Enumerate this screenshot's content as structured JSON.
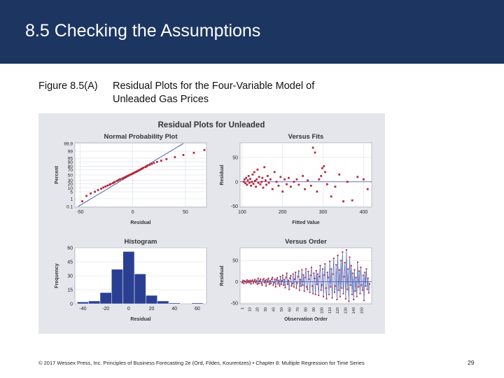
{
  "slide": {
    "title": "8.5 Checking the Assumptions",
    "figure_number": "Figure 8.5(A)",
    "caption_line1": "Residual Plots for the Four-Variable Model of",
    "caption_line2": "Unleaded Gas Prices",
    "footer": "© 2017 Wessex Press, Inc. Principles of Business Forecasting 2e (Ord, Fildes, Kourentzes) • Chapter 8: Multiple Regression for Time Series",
    "page_number": "29"
  },
  "colors": {
    "header": "#1c3561",
    "panel": "#e4e6ec",
    "points": "#b8283a",
    "bars": "#2b3f92",
    "line": "#4d5fb0"
  },
  "figure_title": "Residual Plots for Unleaded",
  "chart_data": [
    {
      "type": "scatter",
      "title": "Normal Probability Plot",
      "xlabel": "Residual",
      "ylabel": "Percent",
      "xlim": [
        -55,
        70
      ],
      "x_ticks": [
        -50,
        0,
        50
      ],
      "y_ticks": [
        0.1,
        1,
        5,
        10,
        20,
        30,
        50,
        70,
        80,
        90,
        95,
        99,
        99.9
      ],
      "y_scale": "normal-probability",
      "reference_line": true,
      "points": [
        [
          -48,
          0.5
        ],
        [
          -44,
          2
        ],
        [
          -40,
          3.5
        ],
        [
          -36,
          5
        ],
        [
          -33,
          7
        ],
        [
          -30,
          9
        ],
        [
          -28,
          11
        ],
        [
          -26,
          13
        ],
        [
          -24,
          15
        ],
        [
          -22,
          17
        ],
        [
          -21,
          19
        ],
        [
          -19,
          21
        ],
        [
          -18,
          23
        ],
        [
          -17,
          25
        ],
        [
          -15,
          28
        ],
        [
          -14,
          30
        ],
        [
          -13,
          32
        ],
        [
          -12,
          34
        ],
        [
          -10,
          36
        ],
        [
          -9,
          38
        ],
        [
          -8,
          40
        ],
        [
          -7,
          42
        ],
        [
          -6,
          44
        ],
        [
          -5,
          46
        ],
        [
          -4,
          48
        ],
        [
          -3,
          50
        ],
        [
          -2,
          52
        ],
        [
          -1,
          54
        ],
        [
          0,
          56
        ],
        [
          1,
          58
        ],
        [
          2,
          60
        ],
        [
          3,
          62
        ],
        [
          4,
          64
        ],
        [
          5,
          66
        ],
        [
          6,
          68
        ],
        [
          7,
          70
        ],
        [
          8,
          72
        ],
        [
          9,
          74
        ],
        [
          10,
          76
        ],
        [
          12,
          78
        ],
        [
          13,
          80
        ],
        [
          14,
          82
        ],
        [
          16,
          84
        ],
        [
          18,
          86
        ],
        [
          20,
          88
        ],
        [
          23,
          90
        ],
        [
          27,
          92
        ],
        [
          32,
          94
        ],
        [
          40,
          96
        ],
        [
          48,
          97.5
        ],
        [
          58,
          98.5
        ],
        [
          68,
          99.3
        ]
      ]
    },
    {
      "type": "scatter",
      "title": "Versus Fits",
      "xlabel": "Fitted Value",
      "ylabel": "Residual",
      "xlim": [
        95,
        420
      ],
      "ylim": [
        -52,
        80
      ],
      "x_ticks": [
        100,
        200,
        300,
        400
      ],
      "y_ticks": [
        -50,
        0,
        50
      ],
      "zero_line": true,
      "points": [
        [
          104,
          0
        ],
        [
          106,
          5
        ],
        [
          108,
          -3
        ],
        [
          110,
          8
        ],
        [
          112,
          -6
        ],
        [
          114,
          3
        ],
        [
          116,
          12
        ],
        [
          118,
          -2
        ],
        [
          120,
          6
        ],
        [
          122,
          -8
        ],
        [
          124,
          0
        ],
        [
          126,
          15
        ],
        [
          128,
          -4
        ],
        [
          130,
          20
        ],
        [
          132,
          2
        ],
        [
          134,
          -10
        ],
        [
          136,
          5
        ],
        [
          138,
          25
        ],
        [
          140,
          -2
        ],
        [
          142,
          10
        ],
        [
          145,
          -5
        ],
        [
          148,
          0
        ],
        [
          150,
          8
        ],
        [
          152,
          -12
        ],
        [
          155,
          30
        ],
        [
          158,
          3
        ],
        [
          160,
          -6
        ],
        [
          163,
          12
        ],
        [
          166,
          -2
        ],
        [
          170,
          5
        ],
        [
          175,
          -15
        ],
        [
          180,
          20
        ],
        [
          185,
          0
        ],
        [
          190,
          -8
        ],
        [
          195,
          10
        ],
        [
          200,
          -20
        ],
        [
          205,
          5
        ],
        [
          210,
          -5
        ],
        [
          215,
          8
        ],
        [
          220,
          -10
        ],
        [
          228,
          0
        ],
        [
          235,
          5
        ],
        [
          240,
          -6
        ],
        [
          250,
          12
        ],
        [
          255,
          -15
        ],
        [
          262,
          3
        ],
        [
          270,
          -8
        ],
        [
          275,
          70
        ],
        [
          280,
          60
        ],
        [
          285,
          -20
        ],
        [
          290,
          5
        ],
        [
          295,
          12
        ],
        [
          298,
          28
        ],
        [
          302,
          32
        ],
        [
          305,
          20
        ],
        [
          310,
          -5
        ],
        [
          320,
          -30
        ],
        [
          330,
          -10
        ],
        [
          340,
          15
        ],
        [
          350,
          -40
        ],
        [
          360,
          0
        ],
        [
          372,
          -38
        ],
        [
          385,
          10
        ],
        [
          400,
          5
        ],
        [
          410,
          -15
        ]
      ]
    },
    {
      "type": "bar",
      "title": "Histogram",
      "xlabel": "Residual",
      "ylabel": "Frequency",
      "bin_width": 10,
      "x": [
        -40,
        -30,
        -20,
        -10,
        0,
        10,
        20,
        30,
        40,
        50,
        60
      ],
      "values": [
        2,
        3,
        12,
        37,
        56,
        32,
        9,
        3,
        1,
        0,
        1
      ],
      "x_ticks": [
        -40,
        -20,
        0,
        20,
        40,
        60
      ],
      "y_ticks": [
        0,
        15,
        30,
        45,
        60
      ],
      "ylim": [
        0,
        60
      ]
    },
    {
      "type": "line",
      "title": "Versus Order",
      "xlabel": "Observation Order",
      "ylabel": "Residual",
      "xlim": [
        1,
        160
      ],
      "ylim": [
        -52,
        80
      ],
      "x_ticks": [
        1,
        10,
        20,
        30,
        40,
        50,
        60,
        70,
        80,
        90,
        100,
        110,
        120,
        130,
        140,
        150
      ],
      "y_ticks": [
        -50,
        0,
        50
      ],
      "zero_line": true,
      "values": [
        -2,
        3,
        -4,
        2,
        1,
        -3,
        4,
        -1,
        2,
        -2,
        3,
        -5,
        2,
        4,
        -3,
        1,
        5,
        -2,
        3,
        -6,
        8,
        -4,
        2,
        6,
        -3,
        -8,
        4,
        7,
        -2,
        3,
        -10,
        5,
        -1,
        8,
        -6,
        2,
        -4,
        6,
        10,
        -8,
        -2,
        6,
        -12,
        4,
        9,
        -5,
        3,
        -10,
        12,
        -6,
        2,
        15,
        -8,
        5,
        -14,
        10,
        20,
        -6,
        3,
        -18,
        8,
        14,
        -10,
        -4,
        18,
        -12,
        6,
        22,
        -15,
        -3,
        12,
        25,
        -20,
        5,
        -10,
        28,
        -8,
        16,
        -22,
        10,
        30,
        -12,
        -18,
        24,
        6,
        -25,
        15,
        34,
        -10,
        -28,
        20,
        8,
        -30,
        26,
        -6,
        18,
        -32,
        12,
        38,
        -20,
        -8,
        30,
        -35,
        16,
        42,
        -15,
        -40,
        22,
        10,
        -30,
        48,
        -12,
        30,
        -38,
        18,
        55,
        -25,
        -10,
        40,
        -42,
        62,
        -20,
        28,
        -35,
        50,
        -15,
        70,
        -28,
        12,
        45,
        -40,
        75,
        -18,
        30,
        -46,
        58,
        -8,
        38,
        -30,
        20,
        -42,
        28,
        -22,
        10,
        -35,
        46,
        -12,
        25,
        -28,
        34,
        -8,
        -20,
        15,
        -44,
        22,
        -10,
        30,
        -18,
        8,
        -26,
        -5
      ]
    }
  ]
}
